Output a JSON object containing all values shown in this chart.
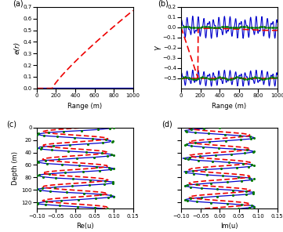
{
  "fig_width": 3.61,
  "fig_height": 2.96,
  "dpi": 100,
  "subplot_labels": [
    "(a)",
    "(b)",
    "(c)",
    "(d)"
  ],
  "panel_a": {
    "xlabel": "Range (m)",
    "ylabel": "e(r)",
    "xlim": [
      0,
      1000
    ],
    "ylim": [
      0,
      0.7
    ],
    "yticks": [
      0.0,
      0.1,
      0.2,
      0.3,
      0.4,
      0.5,
      0.6,
      0.7
    ],
    "xticks": [
      0,
      200,
      400,
      600,
      800,
      1000
    ],
    "dashed_color": "#EE0000",
    "solid_color": "#0000BB"
  },
  "panel_b": {
    "xlabel": "Range (m)",
    "ylabel": "γ",
    "xlim": [
      0,
      1000
    ],
    "ylim": [
      -0.6,
      0.2
    ],
    "yticks": [
      -0.5,
      -0.4,
      -0.3,
      -0.2,
      -0.1,
      0.0,
      0.1,
      0.2
    ],
    "xticks": [
      0,
      200,
      400,
      600,
      800,
      1000
    ],
    "dashed_color": "#EE0000",
    "solid_color": "#0000CC",
    "dot_color": "#007700"
  },
  "panel_c": {
    "xlabel": "Re(u)",
    "ylabel": "Depth (m)",
    "xlim": [
      -0.1,
      0.15
    ],
    "ylim": [
      130,
      0
    ],
    "xticks": [
      -0.1,
      -0.05,
      0.0,
      0.05,
      0.1,
      0.15
    ],
    "yticks": [
      0,
      20,
      40,
      60,
      80,
      100,
      120
    ],
    "dashed_color": "#EE0000",
    "solid_color": "#0000CC",
    "dot_color": "#007700"
  },
  "panel_d": {
    "xlabel": "Im(u)",
    "ylabel": "",
    "xlim": [
      -0.1,
      0.15
    ],
    "ylim": [
      130,
      0
    ],
    "xticks": [
      -0.1,
      -0.05,
      0.0,
      0.05,
      0.1,
      0.15
    ],
    "yticks": [
      0,
      20,
      40,
      60,
      80,
      100,
      120
    ],
    "dashed_color": "#EE0000",
    "solid_color": "#0000CC",
    "dot_color": "#007700"
  }
}
